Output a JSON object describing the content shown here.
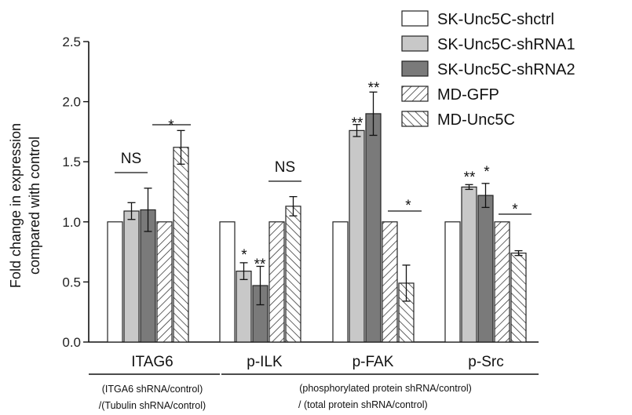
{
  "chart_data": {
    "type": "bar",
    "ylabel_line1": "Fold change in expression",
    "ylabel_line2": "compared with control",
    "ylim": [
      0,
      2.5
    ],
    "yticks": [
      "0.0",
      "0.5",
      "1.0",
      "1.5",
      "2.0",
      "2.5"
    ],
    "categories": [
      "ITAG6",
      "p-ILK",
      "p-FAK",
      "p-Src"
    ],
    "legend_position": "top-right",
    "series": [
      {
        "name": "SK-Unc5C-shctrl",
        "style": "white",
        "values": [
          1.0,
          1.0,
          1.0,
          1.0
        ],
        "errors": [
          0,
          0,
          0,
          0
        ]
      },
      {
        "name": "SK-Unc5C-shRNA1",
        "style": "light-gray",
        "values": [
          1.09,
          0.59,
          1.76,
          1.29
        ],
        "errors": [
          0.07,
          0.07,
          0.05,
          0.02
        ]
      },
      {
        "name": "SK-Unc5C-shRNA2",
        "style": "dark-gray",
        "values": [
          1.1,
          0.47,
          1.9,
          1.22
        ],
        "errors": [
          0.18,
          0.16,
          0.18,
          0.1
        ]
      },
      {
        "name": "MD-GFP",
        "style": "hatch-forward",
        "values": [
          1.0,
          1.0,
          1.0,
          1.0
        ],
        "errors": [
          0,
          0,
          0,
          0
        ]
      },
      {
        "name": "MD-Unc5C",
        "style": "hatch-back",
        "values": [
          1.62,
          1.13,
          0.49,
          0.74
        ],
        "errors": [
          0.14,
          0.08,
          0.15,
          0.02
        ]
      }
    ],
    "annotations": {
      "ns_itag6": "NS",
      "star_itag6": "*",
      "star_ilk_1": "*",
      "star_ilk_2": "**",
      "ns_ilk": "NS",
      "star_fak_1": "**",
      "star_fak_2": "**",
      "star_fak_md": "*",
      "star_src_1": "**",
      "star_src_2": "*",
      "star_src_md": "*"
    },
    "footnote_left_1": "(ITGA6 shRNA/control)",
    "footnote_left_2": "/(Tubulin shRNA/control)",
    "footnote_right_1": "(phosphorylated protein shRNA/control)",
    "footnote_right_2": "/ (total protein shRNA/control)"
  }
}
